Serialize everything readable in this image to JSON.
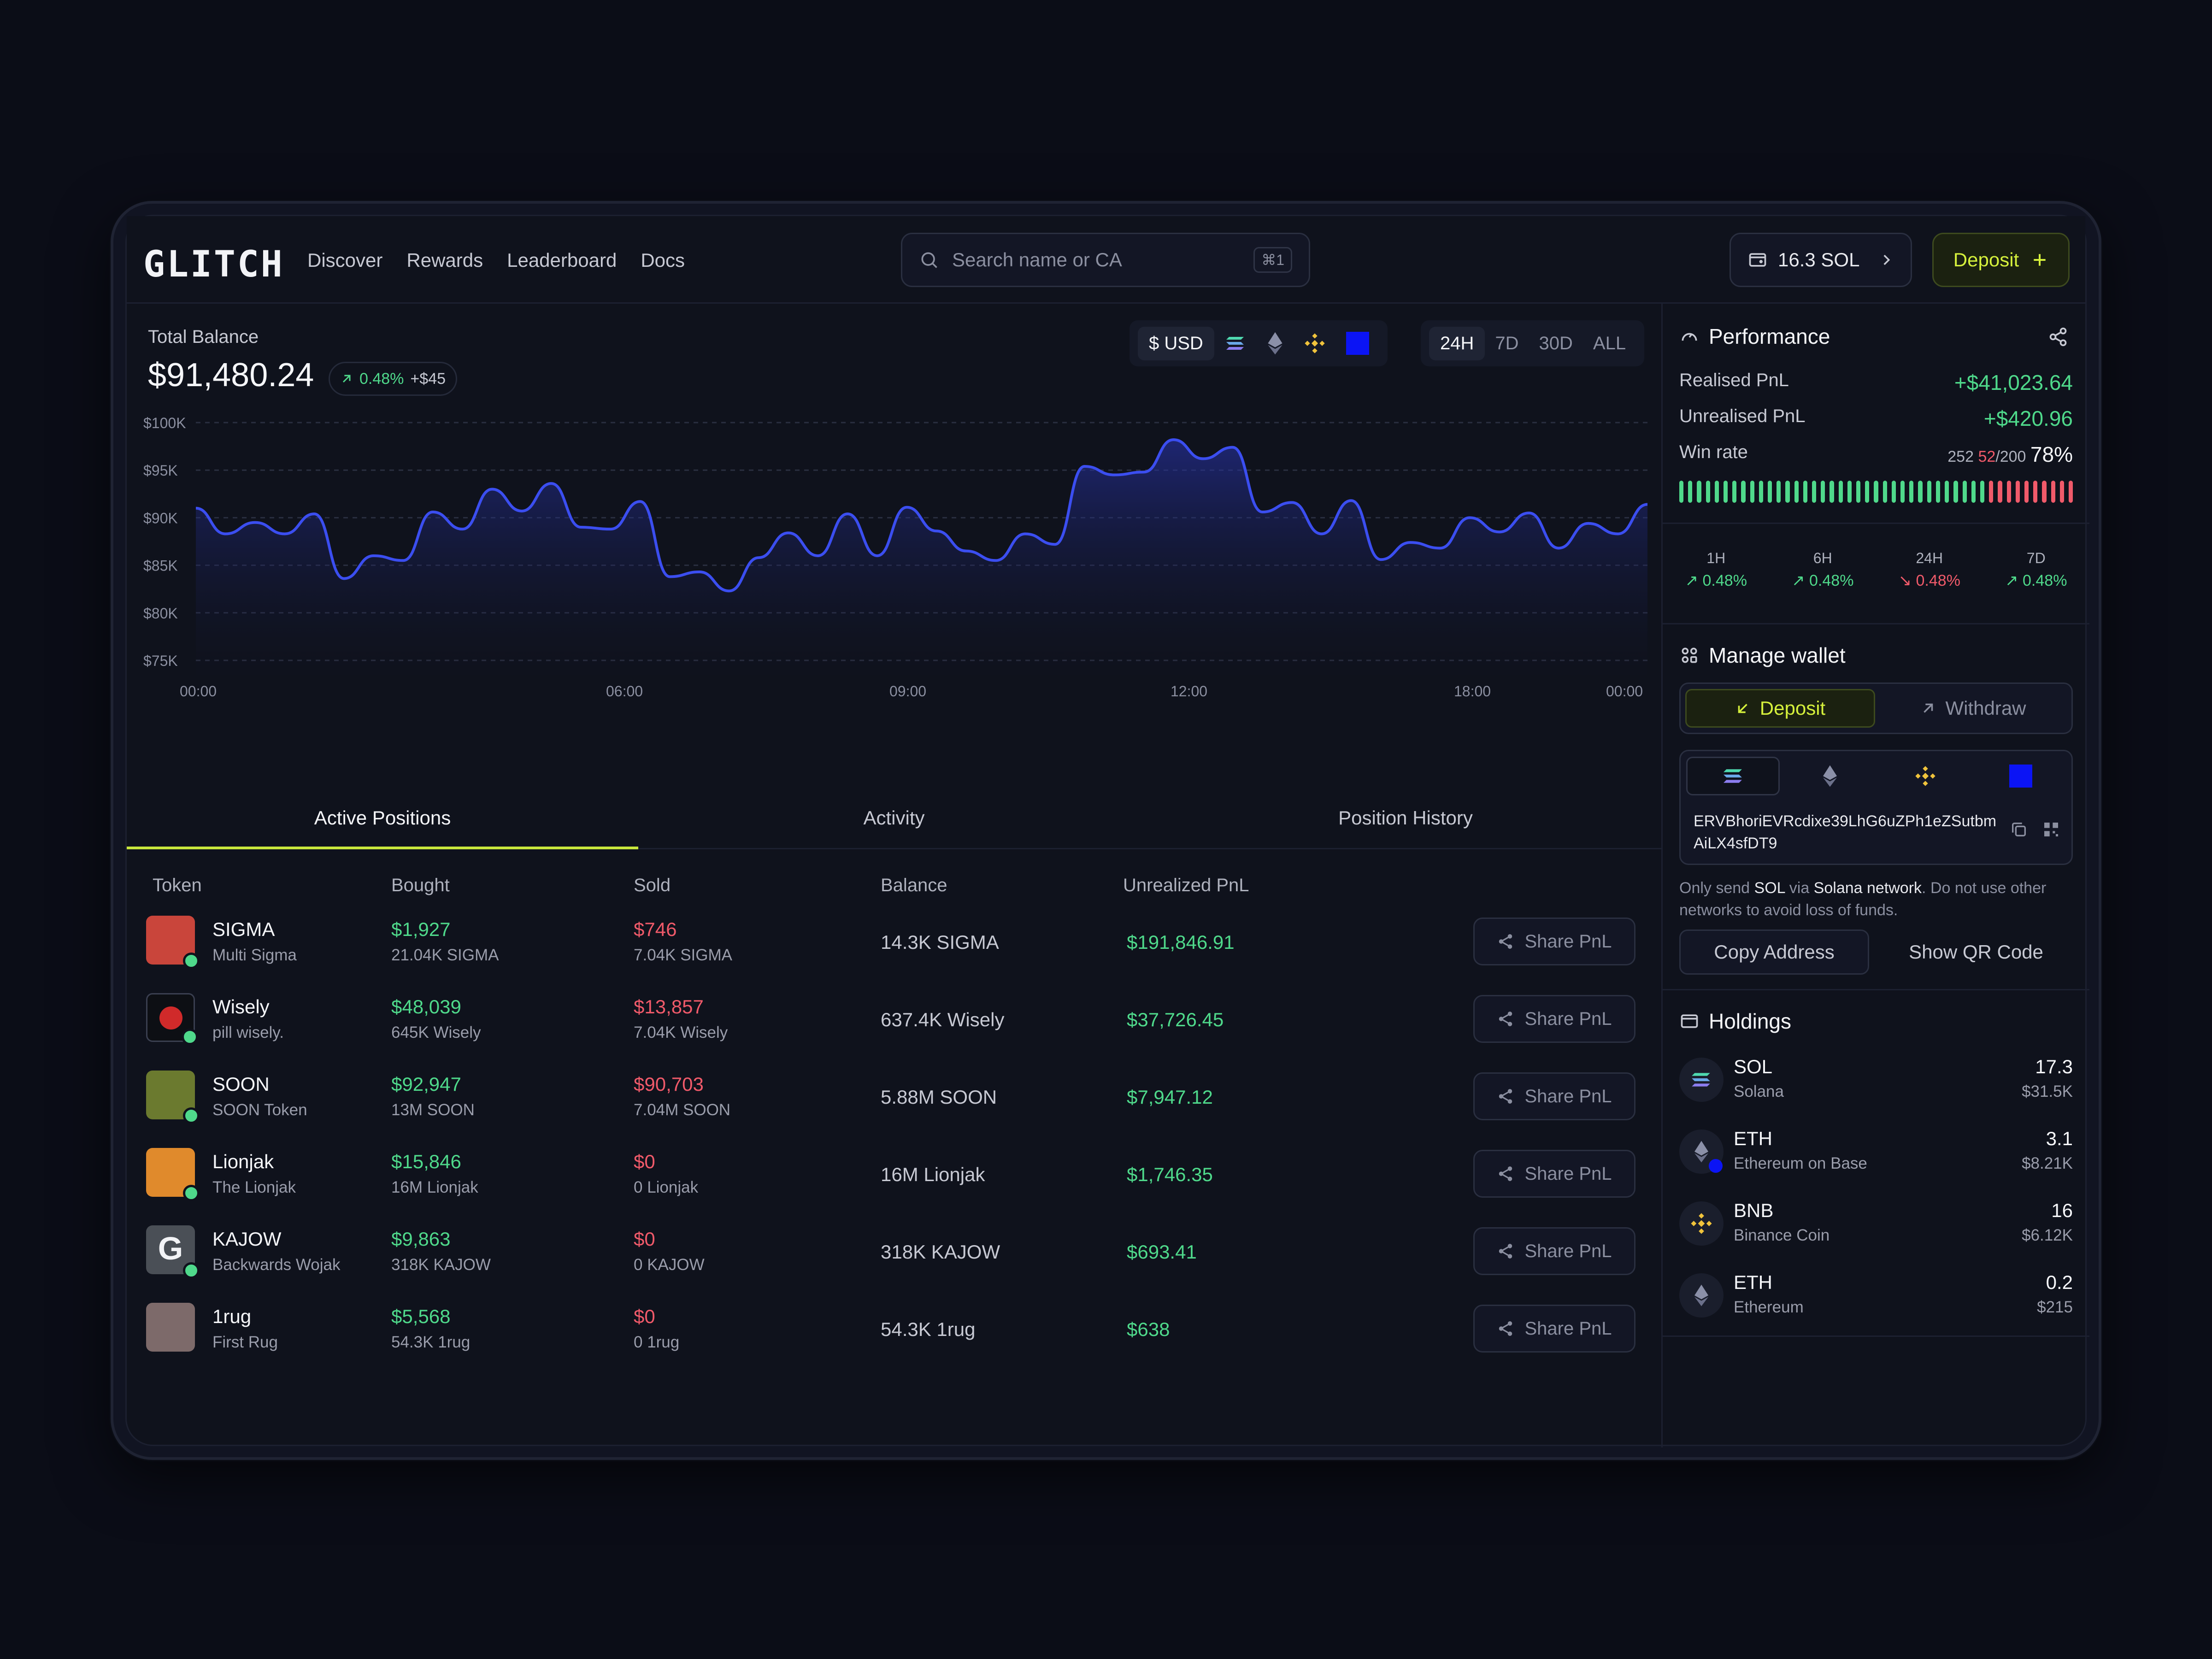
{
  "header": {
    "logo": "GLITCH",
    "nav": [
      "Discover",
      "Rewards",
      "Leaderboard",
      "Docs"
    ],
    "search_placeholder": "Search name or CA",
    "search_shortcut": "⌘1",
    "wallet_balance": "16.3 SOL",
    "deposit_label": "Deposit"
  },
  "balance": {
    "label": "Total Balance",
    "value": "$91,480.24",
    "change_pct": "0.48%",
    "change_abs": "+$45"
  },
  "controls": {
    "currency": "$ USD",
    "ranges": [
      "24H",
      "7D",
      "30D",
      "ALL"
    ],
    "active_range": "24H"
  },
  "colors": {
    "accent": "#c8e63c",
    "line": "#3b4ef0",
    "positive": "#4fd98b",
    "negative": "#f05a6a"
  },
  "chart_data": {
    "type": "line",
    "ylim": [
      75000,
      100000
    ],
    "yticks": [
      "$100K",
      "$95K",
      "$90K",
      "$85K",
      "$80K",
      "$75K"
    ],
    "xticks": [
      "00:00",
      "06:00",
      "09:00",
      "12:00",
      "18:00",
      "00:00"
    ],
    "values": [
      91000,
      88300,
      89500,
      88300,
      90400,
      83600,
      86000,
      85500,
      90600,
      88800,
      93000,
      90700,
      93600,
      89000,
      88800,
      91700,
      83800,
      84300,
      82300,
      85800,
      88400,
      86000,
      90400,
      86000,
      91100,
      88600,
      86500,
      85500,
      88300,
      87200,
      95400,
      94500,
      94800,
      98200,
      96200,
      97400,
      90600,
      91600,
      88300,
      91800,
      85600,
      87400,
      86800,
      90000,
      88500,
      90500,
      86800,
      89400,
      88300,
      91400
    ]
  },
  "tabs": [
    "Active Positions",
    "Activity",
    "Position History"
  ],
  "table": {
    "headers": [
      "Token",
      "Bought",
      "Sold",
      "Balance",
      "Unrealized PnL"
    ],
    "share_label": "Share PnL",
    "rows": [
      {
        "name": "SIGMA",
        "sub": "Multi Sigma",
        "bought": "$1,927",
        "bought_sub": "21.04K SIGMA",
        "sold": "$746",
        "sold_sub": "7.04K SIGMA",
        "balance": "14.3K SIGMA",
        "pnl": "$191,846.91",
        "color": "#c9453b"
      },
      {
        "name": "Wisely",
        "sub": "pill wisely.",
        "bought": "$48,039",
        "bought_sub": "645K Wisely",
        "sold": "$13,857",
        "sold_sub": "7.04K Wisely",
        "balance": "637.4K Wisely",
        "pnl": "$37,726.45",
        "color": "#0d0f14"
      },
      {
        "name": "SOON",
        "sub": "SOON Token",
        "bought": "$92,947",
        "bought_sub": "13M SOON",
        "sold": "$90,703",
        "sold_sub": "7.04M SOON",
        "balance": "5.88M SOON",
        "pnl": "$7,947.12",
        "color": "#6b7a2f"
      },
      {
        "name": "Lionjak",
        "sub": "The Lionjak",
        "bought": "$15,846",
        "bought_sub": "16M Lionjak",
        "sold": "$0",
        "sold_sub": "0 Lionjak",
        "balance": "16M Lionjak",
        "pnl": "$1,746.35",
        "color": "#e08a2c"
      },
      {
        "name": "KAJOW",
        "sub": "Backwards Wojak",
        "bought": "$9,863",
        "bought_sub": "318K KAJOW",
        "sold": "$0",
        "sold_sub": "0 KAJOW",
        "balance": "318K KAJOW",
        "pnl": "$693.41",
        "color": "#4a4f56"
      },
      {
        "name": "1rug",
        "sub": "First Rug",
        "bought": "$5,568",
        "bought_sub": "54.3K 1rug",
        "sold": "$0",
        "sold_sub": "0 1rug",
        "balance": "54.3K 1rug",
        "pnl": "$638",
        "color": "#7d6a6a"
      }
    ]
  },
  "performance": {
    "title": "Performance",
    "realised_label": "Realised PnL",
    "realised_value": "+$41,023.64",
    "unrealised_label": "Unrealised PnL",
    "unrealised_value": "+$420.96",
    "winrate_label": "Win rate",
    "win_total": "252",
    "win_red": "52",
    "win_of": "/200",
    "win_pct": "78%",
    "periods": [
      {
        "label": "1H",
        "value": "0.48%",
        "dir": "up"
      },
      {
        "label": "6H",
        "value": "0.48%",
        "dir": "up"
      },
      {
        "label": "24H",
        "value": "0.48%",
        "dir": "down"
      },
      {
        "label": "7D",
        "value": "0.48%",
        "dir": "up"
      }
    ]
  },
  "wallet": {
    "title": "Manage wallet",
    "deposit": "Deposit",
    "withdraw": "Withdraw",
    "address": "ERVBhoriEVRcdixe39LhG6uZPh1eZSutbmAiLX4sfDT9",
    "note_1": "Only send ",
    "note_token": "SOL",
    "note_2": " via ",
    "note_network": "Solana network",
    "note_3": ". Do not use other networks to avoid loss of funds.",
    "copy": "Copy Address",
    "qr": "Show QR Code"
  },
  "holdings": {
    "title": "Holdings",
    "items": [
      {
        "sym": "SOL",
        "name": "Solana",
        "qty": "17.3",
        "usd": "$31.5K"
      },
      {
        "sym": "ETH",
        "name": "Ethereum on Base",
        "qty": "3.1",
        "usd": "$8.21K"
      },
      {
        "sym": "BNB",
        "name": "Binance Coin",
        "qty": "16",
        "usd": "$6.12K"
      },
      {
        "sym": "ETH",
        "name": "Ethereum",
        "qty": "0.2",
        "usd": "$215"
      }
    ]
  }
}
